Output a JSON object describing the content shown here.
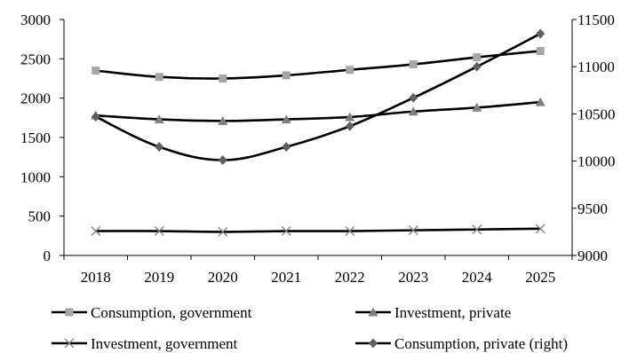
{
  "chart_data": {
    "type": "line",
    "title": "",
    "xlabel": "",
    "ylabel": "",
    "categories": [
      "2018",
      "2019",
      "2020",
      "2021",
      "2022",
      "2023",
      "2024",
      "2025"
    ],
    "left_axis": {
      "min": 0,
      "max": 3000,
      "ticks": [
        "0",
        "500",
        "1000",
        "1500",
        "2000",
        "2500",
        "3000"
      ]
    },
    "right_axis": {
      "min": 9000,
      "max": 11500,
      "ticks": [
        "9000",
        "9500",
        "10000",
        "10500",
        "11000",
        "11500"
      ]
    },
    "grid": false,
    "legend_position": "bottom",
    "series": [
      {
        "name": "Consumption, government",
        "axis": "left",
        "marker": "square",
        "color": "#000000",
        "marker_color": "#a6a6a6",
        "values": [
          2350,
          2270,
          2250,
          2290,
          2360,
          2430,
          2520,
          2600
        ]
      },
      {
        "name": "Investment, private",
        "axis": "left",
        "marker": "triangle",
        "color": "#000000",
        "marker_color": "#808080",
        "values": [
          1780,
          1730,
          1710,
          1730,
          1760,
          1830,
          1880,
          1950
        ]
      },
      {
        "name": "Investment, government",
        "axis": "left",
        "marker": "x",
        "color": "#000000",
        "marker_color": "#808080",
        "values": [
          310,
          310,
          300,
          310,
          310,
          320,
          330,
          340
        ]
      },
      {
        "name": "Consumption, private (right)",
        "axis": "right",
        "marker": "diamond",
        "color": "#000000",
        "marker_color": "#606060",
        "values": [
          10470,
          10150,
          10010,
          10150,
          10370,
          10670,
          11000,
          11350
        ]
      }
    ]
  }
}
